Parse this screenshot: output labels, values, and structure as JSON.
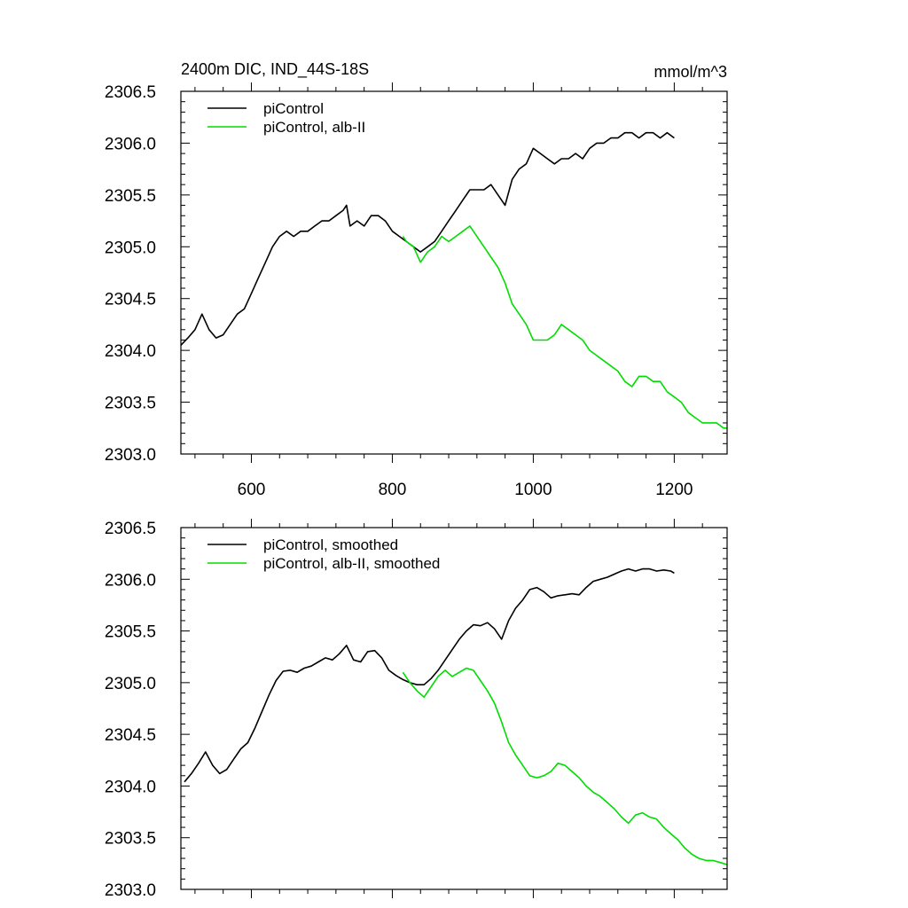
{
  "chart_data": [
    {
      "type": "line",
      "title": "2400m DIC, IND_44S-18S",
      "units": "mmol/m^3",
      "xlim": [
        500,
        1275
      ],
      "ylim": [
        2303.0,
        2306.5
      ],
      "x_ticks": [
        600,
        800,
        1000,
        1200
      ],
      "y_ticks": [
        2303.0,
        2303.5,
        2304.0,
        2304.5,
        2305.0,
        2305.5,
        2306.0,
        2306.5
      ],
      "show_x_tick_labels": true,
      "legend": "top-left",
      "grid": false,
      "series": [
        {
          "name": "piControl",
          "color": "#000000",
          "x": [
            500,
            510,
            520,
            530,
            540,
            550,
            560,
            570,
            580,
            590,
            600,
            610,
            620,
            630,
            640,
            650,
            660,
            670,
            680,
            690,
            700,
            710,
            720,
            730,
            735,
            740,
            750,
            760,
            770,
            780,
            790,
            800,
            810,
            820,
            830,
            840,
            850,
            860,
            870,
            880,
            890,
            900,
            910,
            920,
            930,
            940,
            950,
            960,
            970,
            980,
            990,
            1000,
            1010,
            1020,
            1030,
            1040,
            1050,
            1060,
            1070,
            1080,
            1090,
            1100,
            1110,
            1120,
            1130,
            1140,
            1150,
            1160,
            1170,
            1180,
            1190,
            1200
          ],
          "values": [
            2304.05,
            2304.12,
            2304.2,
            2304.35,
            2304.2,
            2304.12,
            2304.15,
            2304.25,
            2304.35,
            2304.4,
            2304.55,
            2304.7,
            2304.85,
            2305.0,
            2305.1,
            2305.15,
            2305.1,
            2305.15,
            2305.15,
            2305.2,
            2305.25,
            2305.25,
            2305.3,
            2305.35,
            2305.4,
            2305.2,
            2305.25,
            2305.2,
            2305.3,
            2305.3,
            2305.25,
            2305.15,
            2305.1,
            2305.05,
            2305.0,
            2304.95,
            2305.0,
            2305.05,
            2305.15,
            2305.25,
            2305.35,
            2305.45,
            2305.55,
            2305.55,
            2305.55,
            2305.6,
            2305.5,
            2305.4,
            2305.65,
            2305.75,
            2305.8,
            2305.95,
            2305.9,
            2305.85,
            2305.8,
            2305.85,
            2305.85,
            2305.9,
            2305.85,
            2305.95,
            2306.0,
            2306.0,
            2306.05,
            2306.05,
            2306.1,
            2306.1,
            2306.05,
            2306.1,
            2306.1,
            2306.05,
            2306.1,
            2306.05
          ]
        },
        {
          "name": "piControl, alb-II",
          "color": "#00dd00",
          "x": [
            815,
            820,
            830,
            840,
            850,
            860,
            870,
            880,
            890,
            900,
            910,
            920,
            930,
            940,
            950,
            960,
            970,
            980,
            990,
            1000,
            1010,
            1020,
            1030,
            1040,
            1050,
            1060,
            1070,
            1080,
            1090,
            1100,
            1110,
            1120,
            1130,
            1140,
            1150,
            1160,
            1170,
            1180,
            1190,
            1200,
            1210,
            1220,
            1230,
            1240,
            1250,
            1260,
            1270,
            1275
          ],
          "values": [
            2305.1,
            2305.05,
            2305.0,
            2304.85,
            2304.95,
            2305.0,
            2305.1,
            2305.05,
            2305.1,
            2305.15,
            2305.2,
            2305.1,
            2305.0,
            2304.9,
            2304.8,
            2304.65,
            2304.45,
            2304.35,
            2304.25,
            2304.1,
            2304.1,
            2304.1,
            2304.15,
            2304.25,
            2304.2,
            2304.15,
            2304.1,
            2304.0,
            2303.95,
            2303.9,
            2303.85,
            2303.8,
            2303.7,
            2303.65,
            2303.75,
            2303.75,
            2303.7,
            2303.7,
            2303.6,
            2303.55,
            2303.5,
            2303.4,
            2303.35,
            2303.3,
            2303.3,
            2303.3,
            2303.25,
            2303.25
          ]
        }
      ]
    },
    {
      "type": "line",
      "xlim": [
        500,
        1275
      ],
      "ylim": [
        2303.0,
        2306.5
      ],
      "x_ticks": [
        600,
        800,
        1000,
        1200
      ],
      "y_ticks": [
        2303.0,
        2303.5,
        2304.0,
        2304.5,
        2305.0,
        2305.5,
        2306.0,
        2306.5
      ],
      "show_x_tick_labels": false,
      "legend": "top-left",
      "grid": false,
      "series": [
        {
          "name": "piControl, smoothed",
          "color": "#000000",
          "x": [
            505,
            515,
            525,
            535,
            545,
            555,
            565,
            575,
            585,
            595,
            605,
            615,
            625,
            635,
            645,
            655,
            665,
            675,
            685,
            695,
            705,
            715,
            725,
            735,
            745,
            755,
            765,
            775,
            785,
            795,
            805,
            815,
            825,
            835,
            845,
            855,
            865,
            875,
            885,
            895,
            905,
            915,
            925,
            935,
            945,
            955,
            965,
            975,
            985,
            995,
            1005,
            1015,
            1025,
            1035,
            1045,
            1055,
            1065,
            1075,
            1085,
            1095,
            1105,
            1115,
            1125,
            1135,
            1145,
            1155,
            1165,
            1175,
            1185,
            1195,
            1200
          ],
          "values": [
            2304.04,
            2304.12,
            2304.22,
            2304.33,
            2304.2,
            2304.12,
            2304.16,
            2304.26,
            2304.36,
            2304.42,
            2304.56,
            2304.72,
            2304.88,
            2305.02,
            2305.11,
            2305.12,
            2305.1,
            2305.14,
            2305.16,
            2305.2,
            2305.24,
            2305.22,
            2305.28,
            2305.36,
            2305.22,
            2305.2,
            2305.3,
            2305.31,
            2305.24,
            2305.12,
            2305.07,
            2305.03,
            2305.0,
            2304.98,
            2304.98,
            2305.04,
            2305.12,
            2305.22,
            2305.32,
            2305.42,
            2305.5,
            2305.56,
            2305.55,
            2305.58,
            2305.52,
            2305.42,
            2305.6,
            2305.72,
            2305.8,
            2305.9,
            2305.92,
            2305.88,
            2305.82,
            2305.84,
            2305.85,
            2305.86,
            2305.85,
            2305.92,
            2305.98,
            2306.0,
            2306.02,
            2306.05,
            2306.08,
            2306.1,
            2306.08,
            2306.1,
            2306.1,
            2306.08,
            2306.09,
            2306.08,
            2306.06
          ]
        },
        {
          "name": "piControl, alb-II, smoothed",
          "color": "#00dd00",
          "x": [
            815,
            825,
            835,
            845,
            855,
            865,
            875,
            885,
            895,
            905,
            915,
            925,
            935,
            945,
            955,
            965,
            975,
            985,
            995,
            1005,
            1015,
            1025,
            1035,
            1045,
            1055,
            1065,
            1075,
            1085,
            1095,
            1105,
            1115,
            1125,
            1135,
            1145,
            1155,
            1165,
            1175,
            1185,
            1195,
            1205,
            1215,
            1225,
            1235,
            1245,
            1255,
            1265,
            1275
          ],
          "values": [
            2305.1,
            2305.0,
            2304.92,
            2304.86,
            2304.96,
            2305.06,
            2305.12,
            2305.06,
            2305.1,
            2305.14,
            2305.12,
            2305.02,
            2304.92,
            2304.8,
            2304.62,
            2304.42,
            2304.3,
            2304.2,
            2304.1,
            2304.08,
            2304.1,
            2304.14,
            2304.22,
            2304.2,
            2304.14,
            2304.08,
            2304.0,
            2303.94,
            2303.9,
            2303.84,
            2303.78,
            2303.7,
            2303.64,
            2303.72,
            2303.74,
            2303.7,
            2303.68,
            2303.6,
            2303.54,
            2303.48,
            2303.4,
            2303.34,
            2303.3,
            2303.28,
            2303.28,
            2303.26,
            2303.24
          ]
        }
      ]
    }
  ]
}
